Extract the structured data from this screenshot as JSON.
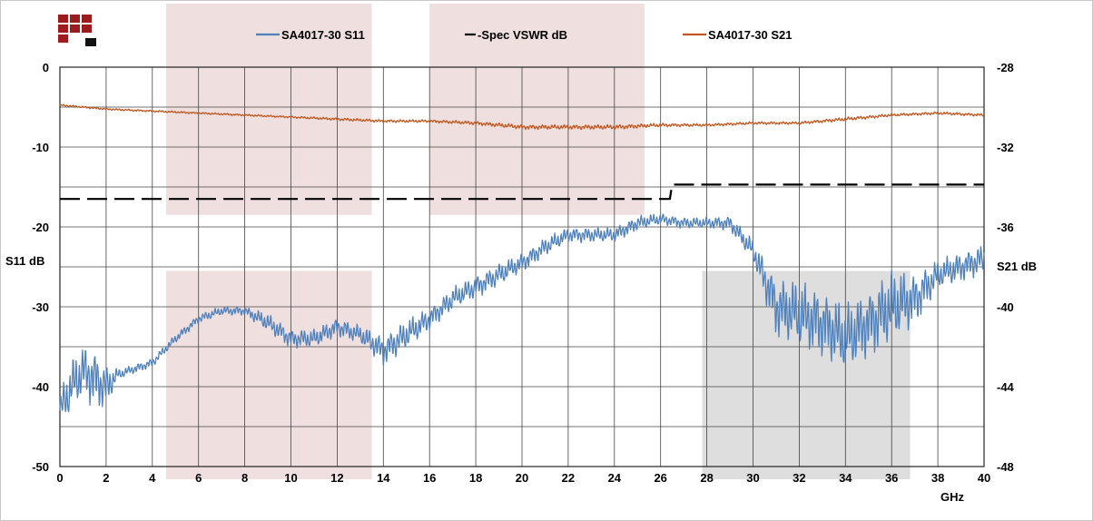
{
  "chart_data": {
    "type": "line",
    "x_unit_label": "GHz",
    "xlim": [
      0,
      40
    ],
    "x_ticks": [
      "0",
      "2",
      "4",
      "6",
      "8",
      "10",
      "12",
      "14",
      "16",
      "18",
      "20",
      "22",
      "24",
      "26",
      "28",
      "30",
      "32",
      "34",
      "36",
      "38",
      "40"
    ],
    "y_left": {
      "label": "S11 dB",
      "lim": [
        -50,
        0
      ],
      "ticks": [
        "0",
        "-10",
        "-20",
        "-30",
        "-40",
        "-50"
      ]
    },
    "y_right": {
      "label": "S21 dB",
      "lim": [
        -48,
        -28
      ],
      "ticks": [
        "-28",
        "-32",
        "-36",
        "-40",
        "-44",
        "-48"
      ]
    },
    "grid": true,
    "legend_position": "top",
    "shaded_regions": [
      {
        "x_range": [
          4.6,
          13.5
        ],
        "y_range": [
          -18.5,
          0
        ],
        "axis": "left",
        "color": "#efdfdf"
      },
      {
        "x_range": [
          16.0,
          25.3
        ],
        "y_range": [
          -18.5,
          0
        ],
        "axis": "left",
        "color": "#efdfdf"
      },
      {
        "x_range": [
          4.6,
          13.5
        ],
        "y_range": [
          -50,
          -25.5
        ],
        "axis": "left",
        "color": "#efdfdf"
      },
      {
        "x_range": [
          27.8,
          36.8
        ],
        "y_range": [
          -50,
          -25.5
        ],
        "axis": "left",
        "color": "#dedede"
      }
    ],
    "series": [
      {
        "name": "SA4017-30 S11",
        "axis": "left",
        "color": "#4f81bd",
        "style": "solid",
        "x": [
          0,
          0.5,
          1,
          1.5,
          2,
          2.5,
          3,
          4,
          5,
          6,
          7,
          8,
          9,
          10,
          11,
          12,
          13,
          14,
          15,
          16,
          17,
          18,
          19,
          20,
          21,
          22,
          23,
          24,
          25,
          26,
          27,
          28,
          29,
          30,
          31,
          32,
          33,
          34,
          35,
          36,
          37,
          38,
          39,
          40
        ],
        "y": [
          -43,
          -40,
          -38,
          -39,
          -40,
          -38.5,
          -38,
          -37,
          -34,
          -31.5,
          -30.5,
          -30.5,
          -32,
          -34,
          -34,
          -32.5,
          -33.5,
          -35.5,
          -33.5,
          -31.5,
          -29,
          -27.5,
          -26,
          -24.5,
          -22.5,
          -21,
          -21,
          -21,
          -19.5,
          -19,
          -19.5,
          -19.5,
          -19.5,
          -23,
          -30,
          -31,
          -32,
          -34,
          -32,
          -30,
          -29,
          -26,
          -25,
          -24
        ],
        "ripple": [
          5,
          7,
          7,
          8,
          6,
          1.5,
          1.2,
          1.2,
          1.2,
          1.2,
          1.2,
          1.2,
          2.5,
          2.5,
          2.5,
          2.5,
          2.5,
          4,
          4,
          3,
          3,
          3,
          3,
          2.5,
          2.5,
          2,
          2,
          2,
          2,
          1.5,
          1.5,
          1.5,
          2,
          3,
          8,
          9,
          9,
          9,
          9,
          10,
          7,
          4,
          4,
          4
        ]
      },
      {
        "name": "-Spec VSWR dB",
        "axis": "left",
        "color": "#000000",
        "style": "dashed",
        "x": [
          0,
          26.4,
          26.5,
          40
        ],
        "y": [
          -16.5,
          -16.5,
          -14.7,
          -14.7
        ]
      },
      {
        "name": "SA4017-30 S21",
        "axis": "right",
        "color": "#c0571f",
        "style": "solid",
        "x": [
          0,
          2,
          4,
          6,
          8,
          10,
          12,
          14,
          16,
          18,
          20,
          22,
          24,
          26,
          28,
          30,
          32,
          34,
          36,
          38,
          40
        ],
        "y": [
          -29.9,
          -30.1,
          -30.2,
          -30.3,
          -30.4,
          -30.5,
          -30.6,
          -30.7,
          -30.7,
          -30.8,
          -31.0,
          -31.0,
          -31.0,
          -30.9,
          -30.9,
          -30.8,
          -30.8,
          -30.6,
          -30.4,
          -30.3,
          -30.4
        ],
        "ripple": [
          0.1,
          0.1,
          0.1,
          0.1,
          0.1,
          0.1,
          0.15,
          0.15,
          0.15,
          0.2,
          0.25,
          0.25,
          0.25,
          0.2,
          0.15,
          0.15,
          0.15,
          0.2,
          0.15,
          0.15,
          0.15
        ]
      }
    ]
  }
}
